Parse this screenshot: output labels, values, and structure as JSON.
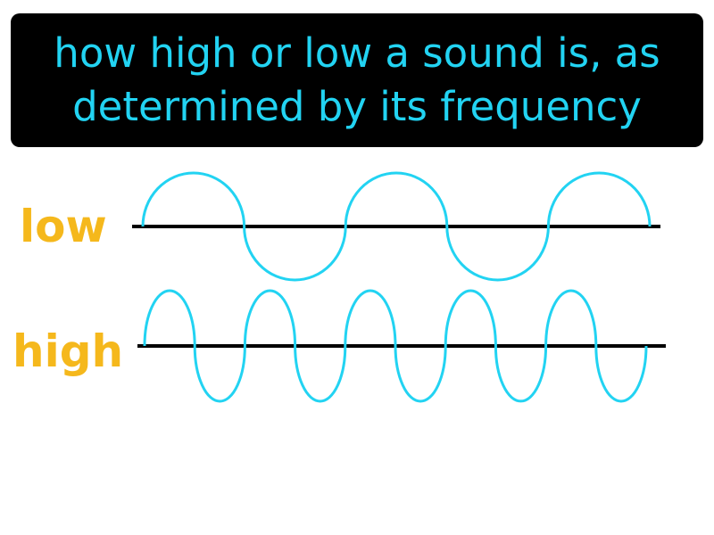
{
  "definition": {
    "line1": "how high or low a sound is, as",
    "line2": "determined by its frequency"
  },
  "waves": {
    "low": {
      "label": "low",
      "half_cycles": 5
    },
    "high": {
      "label": "high",
      "half_cycles": 10
    }
  },
  "colors": {
    "background": "#ffffff",
    "box": "#000000",
    "definition_text": "#22d3f2",
    "wave": "#22d3f2",
    "label": "#f5b81c",
    "axis": "#000000"
  }
}
